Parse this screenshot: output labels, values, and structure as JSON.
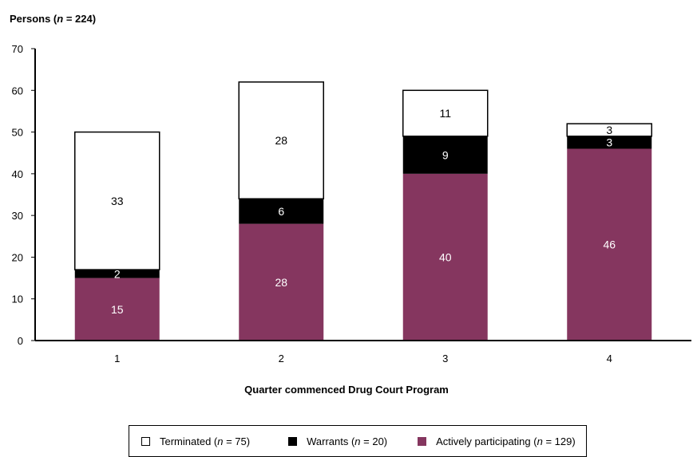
{
  "chart_data": {
    "type": "bar",
    "stacked": true,
    "ylabel_prefix": "Persons (",
    "ylabel_n": "n",
    "ylabel_suffix": " = 224)",
    "xlabel": "Quarter commenced Drug Court Program",
    "categories": [
      "1",
      "2",
      "3",
      "4"
    ],
    "ylim": [
      0,
      70
    ],
    "yticks": [
      "0",
      "10",
      "20",
      "30",
      "40",
      "50",
      "60",
      "70"
    ],
    "grid": false,
    "legend_position": "bottom",
    "series": [
      {
        "key": "active",
        "legend_prefix": "Actively participating (",
        "legend_n": "n",
        "legend_suffix": " = 129)",
        "values": [
          15,
          28,
          40,
          46
        ],
        "color": "#85365f",
        "label_color": "#ffffff"
      },
      {
        "key": "warrants",
        "legend_prefix": "Warrants (",
        "legend_n": "n",
        "legend_suffix": " = 20)",
        "values": [
          2,
          6,
          9,
          3
        ],
        "color": "#000000",
        "label_color": "#ffffff"
      },
      {
        "key": "terminated",
        "legend_prefix": "Terminated (",
        "legend_n": "n",
        "legend_suffix": " = 75)",
        "values": [
          33,
          28,
          11,
          3
        ],
        "color": "#ffffff",
        "label_color": "#000000"
      }
    ]
  }
}
